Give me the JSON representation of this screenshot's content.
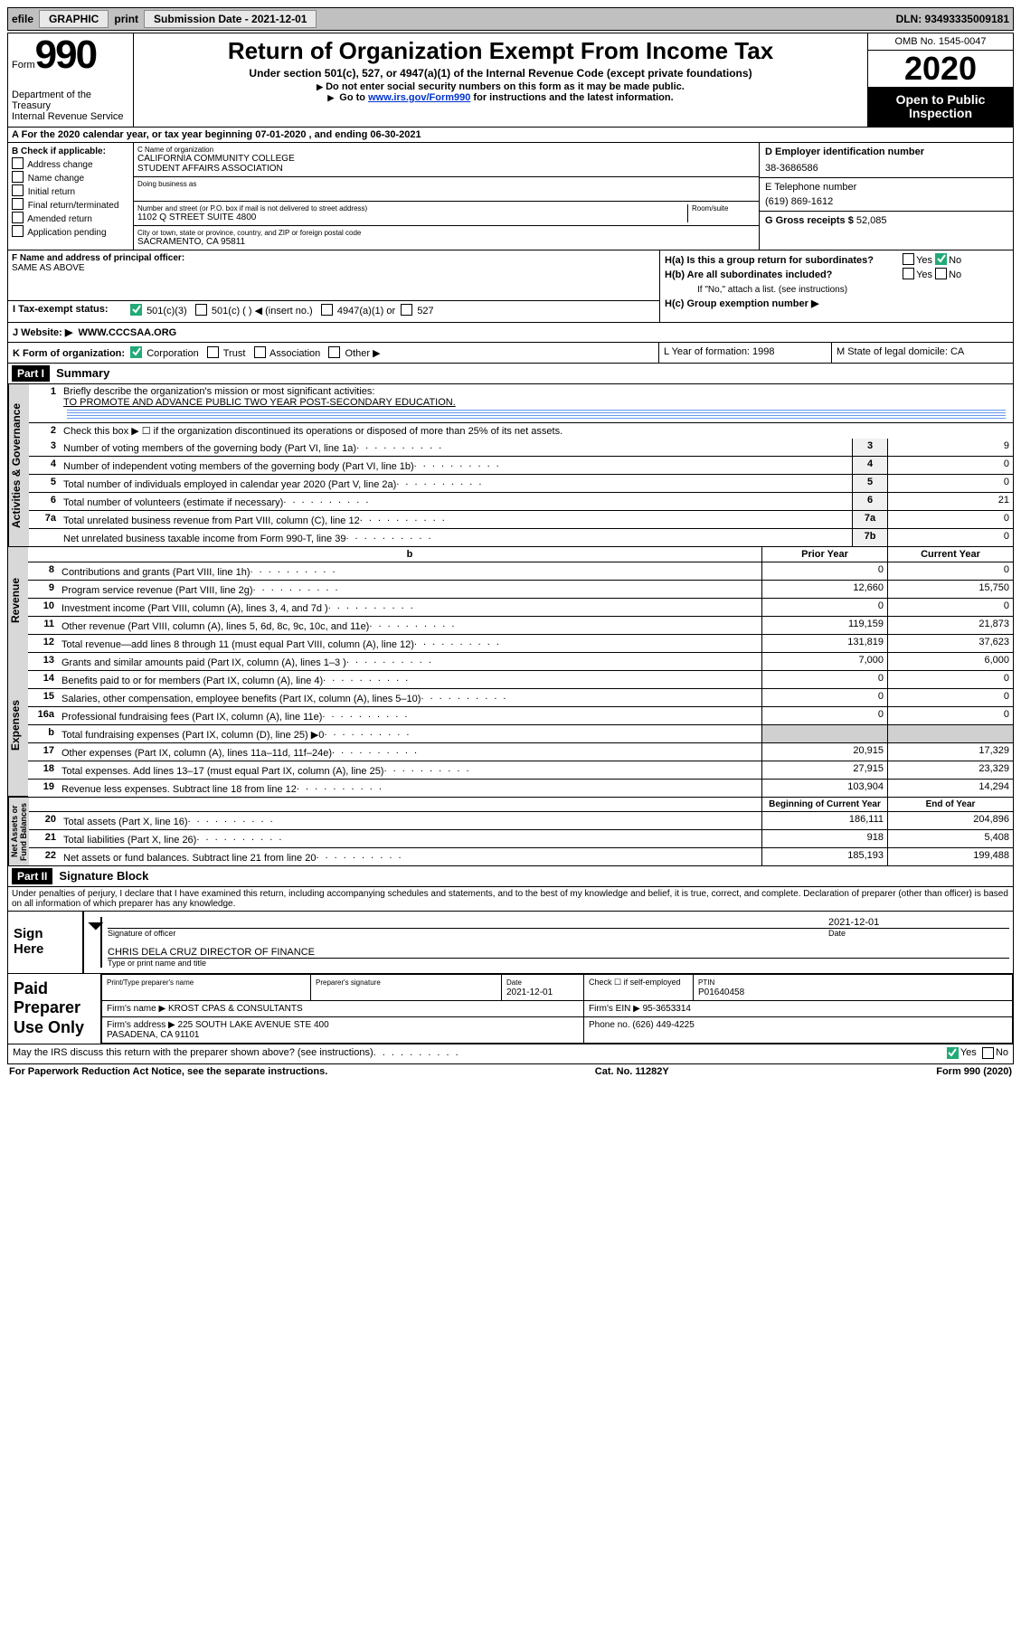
{
  "topbar": {
    "efile": "efile",
    "graphic": "GRAPHIC",
    "print": "print",
    "subdate_lbl": "Submission Date - 2021-12-01",
    "dln": "DLN: 93493335009181"
  },
  "header": {
    "form_word": "Form",
    "form_num": "990",
    "dept": "Department of the Treasury\nInternal Revenue Service",
    "title": "Return of Organization Exempt From Income Tax",
    "sub": "Under section 501(c), 527, or 4947(a)(1) of the Internal Revenue Code (except private foundations)",
    "note1": "Do not enter social security numbers on this form as it may be made public.",
    "note2_pre": "Go to ",
    "note2_link": "www.irs.gov/Form990",
    "note2_post": " for instructions and the latest information.",
    "omb": "OMB No. 1545-0047",
    "year": "2020",
    "open": "Open to Public Inspection"
  },
  "rowA": "For the 2020 calendar year, or tax year beginning 07-01-2020    , and ending 06-30-2021",
  "boxB": {
    "hdr": "B Check if applicable:",
    "items": [
      "Address change",
      "Name change",
      "Initial return",
      "Final return/terminated",
      "Amended return",
      "Application pending"
    ]
  },
  "boxC": {
    "name_lbl": "C Name of organization",
    "name": "CALIFORNIA COMMUNITY COLLEGE\nSTUDENT AFFAIRS ASSOCIATION",
    "dba_lbl": "Doing business as",
    "addr_lbl": "Number and street (or P.O. box if mail is not delivered to street address)",
    "room_lbl": "Room/suite",
    "addr": "1102 Q STREET SUITE 4800",
    "city_lbl": "City or town, state or province, country, and ZIP or foreign postal code",
    "city": "SACRAMENTO, CA  95811"
  },
  "boxD": {
    "lbl": "D Employer identification number",
    "val": "38-3686586"
  },
  "boxE": {
    "lbl": "E Telephone number",
    "val": "(619) 869-1612"
  },
  "boxG": {
    "lbl": "G Gross receipts $",
    "val": "52,085"
  },
  "boxF": {
    "lbl": "F  Name and address of principal officer:",
    "val": "SAME AS ABOVE"
  },
  "boxH": {
    "a": "H(a)  Is this a group return for subordinates?",
    "b": "H(b)  Are all subordinates included?",
    "note": "If \"No,\" attach a list. (see instructions)",
    "c": "H(c)  Group exemption number ▶",
    "yes": "Yes",
    "no": "No"
  },
  "rowI": {
    "lbl": "I  Tax-exempt status:",
    "o1": "501(c)(3)",
    "o2": "501(c) (   ) ◀ (insert no.)",
    "o3": "4947(a)(1) or",
    "o4": "527"
  },
  "rowJ": {
    "lbl": "J   Website: ▶",
    "val": "WWW.CCCSAA.ORG"
  },
  "rowK": {
    "lbl": "K Form of organization:",
    "o1": "Corporation",
    "o2": "Trust",
    "o3": "Association",
    "o4": "Other ▶",
    "L": "L Year of formation: 1998",
    "M": "M State of legal domicile: CA"
  },
  "part1": {
    "hdr": "Part I",
    "title": "Summary"
  },
  "summary": {
    "l1_lbl": "Briefly describe the organization's mission or most significant activities:",
    "l1_val": "TO PROMOTE AND ADVANCE PUBLIC TWO YEAR POST-SECONDARY EDUCATION.",
    "l2": "Check this box ▶ ☐  if the organization discontinued its operations or disposed of more than 25% of its net assets.",
    "rows": [
      {
        "n": "3",
        "d": "Number of voting members of the governing body (Part VI, line 1a)",
        "b": "3",
        "v": "9"
      },
      {
        "n": "4",
        "d": "Number of independent voting members of the governing body (Part VI, line 1b)",
        "b": "4",
        "v": "0"
      },
      {
        "n": "5",
        "d": "Total number of individuals employed in calendar year 2020 (Part V, line 2a)",
        "b": "5",
        "v": "0"
      },
      {
        "n": "6",
        "d": "Total number of volunteers (estimate if necessary)",
        "b": "6",
        "v": "21"
      },
      {
        "n": "7a",
        "d": "Total unrelated business revenue from Part VIII, column (C), line 12",
        "b": "7a",
        "v": "0"
      },
      {
        "n": "",
        "d": "Net unrelated business taxable income from Form 990-T, line 39",
        "b": "7b",
        "v": "0"
      }
    ]
  },
  "revexp": {
    "hdr_prior": "Prior Year",
    "hdr_curr": "Current Year",
    "rows": [
      {
        "n": "8",
        "d": "Contributions and grants (Part VIII, line 1h)",
        "p": "0",
        "c": "0"
      },
      {
        "n": "9",
        "d": "Program service revenue (Part VIII, line 2g)",
        "p": "12,660",
        "c": "15,750"
      },
      {
        "n": "10",
        "d": "Investment income (Part VIII, column (A), lines 3, 4, and 7d )",
        "p": "0",
        "c": "0"
      },
      {
        "n": "11",
        "d": "Other revenue (Part VIII, column (A), lines 5, 6d, 8c, 9c, 10c, and 11e)",
        "p": "119,159",
        "c": "21,873"
      },
      {
        "n": "12",
        "d": "Total revenue—add lines 8 through 11 (must equal Part VIII, column (A), line 12)",
        "p": "131,819",
        "c": "37,623"
      },
      {
        "n": "13",
        "d": "Grants and similar amounts paid (Part IX, column (A), lines 1–3 )",
        "p": "7,000",
        "c": "6,000"
      },
      {
        "n": "14",
        "d": "Benefits paid to or for members (Part IX, column (A), line 4)",
        "p": "0",
        "c": "0"
      },
      {
        "n": "15",
        "d": "Salaries, other compensation, employee benefits (Part IX, column (A), lines 5–10)",
        "p": "0",
        "c": "0"
      },
      {
        "n": "16a",
        "d": "Professional fundraising fees (Part IX, column (A), line 11e)",
        "p": "0",
        "c": "0"
      },
      {
        "n": "b",
        "d": "Total fundraising expenses (Part IX, column (D), line 25) ▶0",
        "p": "",
        "c": ""
      },
      {
        "n": "17",
        "d": "Other expenses (Part IX, column (A), lines 11a–11d, 11f–24e)",
        "p": "20,915",
        "c": "17,329"
      },
      {
        "n": "18",
        "d": "Total expenses. Add lines 13–17 (must equal Part IX, column (A), line 25)",
        "p": "27,915",
        "c": "23,329"
      },
      {
        "n": "19",
        "d": "Revenue less expenses. Subtract line 18 from line 12",
        "p": "103,904",
        "c": "14,294"
      }
    ]
  },
  "netassets": {
    "hdr_beg": "Beginning of Current Year",
    "hdr_end": "End of Year",
    "rows": [
      {
        "n": "20",
        "d": "Total assets (Part X, line 16)",
        "p": "186,111",
        "c": "204,896"
      },
      {
        "n": "21",
        "d": "Total liabilities (Part X, line 26)",
        "p": "918",
        "c": "5,408"
      },
      {
        "n": "22",
        "d": "Net assets or fund balances. Subtract line 21 from line 20",
        "p": "185,193",
        "c": "199,488"
      }
    ]
  },
  "vtabs": {
    "gov": "Activities & Governance",
    "rev": "Revenue",
    "exp": "Expenses",
    "net": "Net Assets or\nFund Balances"
  },
  "part2": {
    "hdr": "Part II",
    "title": "Signature Block"
  },
  "perjury": "Under penalties of perjury, I declare that I have examined this return, including accompanying schedules and statements, and to the best of my knowledge and belief, it is true, correct, and complete. Declaration of preparer (other than officer) is based on all information of which preparer has any knowledge.",
  "sign": {
    "here": "Sign Here",
    "sig_lbl": "Signature of officer",
    "date_lbl": "Date",
    "date": "2021-12-01",
    "name": "CHRIS DELA CRUZ  DIRECTOR OF FINANCE",
    "name_lbl": "Type or print name and title"
  },
  "preparer": {
    "left": "Paid Preparer Use Only",
    "r1c1_lbl": "Print/Type preparer's name",
    "r1c2_lbl": "Preparer's signature",
    "r1c3_lbl": "Date",
    "r1c3_val": "2021-12-01",
    "r1c4_lbl": "Check ☐ if self-employed",
    "r1c5_lbl": "PTIN",
    "r1c5_val": "P01640458",
    "r2c1_lbl": "Firm's name     ▶",
    "r2c1_val": "KROST CPAS & CONSULTANTS",
    "r2c2_lbl": "Firm's EIN ▶",
    "r2c2_val": "95-3653314",
    "r3c1_lbl": "Firm's address ▶",
    "r3c1_val": "225 SOUTH LAKE AVENUE STE 400\nPASADENA, CA  91101",
    "r3c2_lbl": "Phone no.",
    "r3c2_val": "(626) 449-4225"
  },
  "discuss": {
    "q": "May the IRS discuss this return with the preparer shown above? (see instructions)",
    "yes": "Yes",
    "no": "No"
  },
  "footer": {
    "l": "For Paperwork Reduction Act Notice, see the separate instructions.",
    "m": "Cat. No. 11282Y",
    "r": "Form 990 (2020)"
  }
}
